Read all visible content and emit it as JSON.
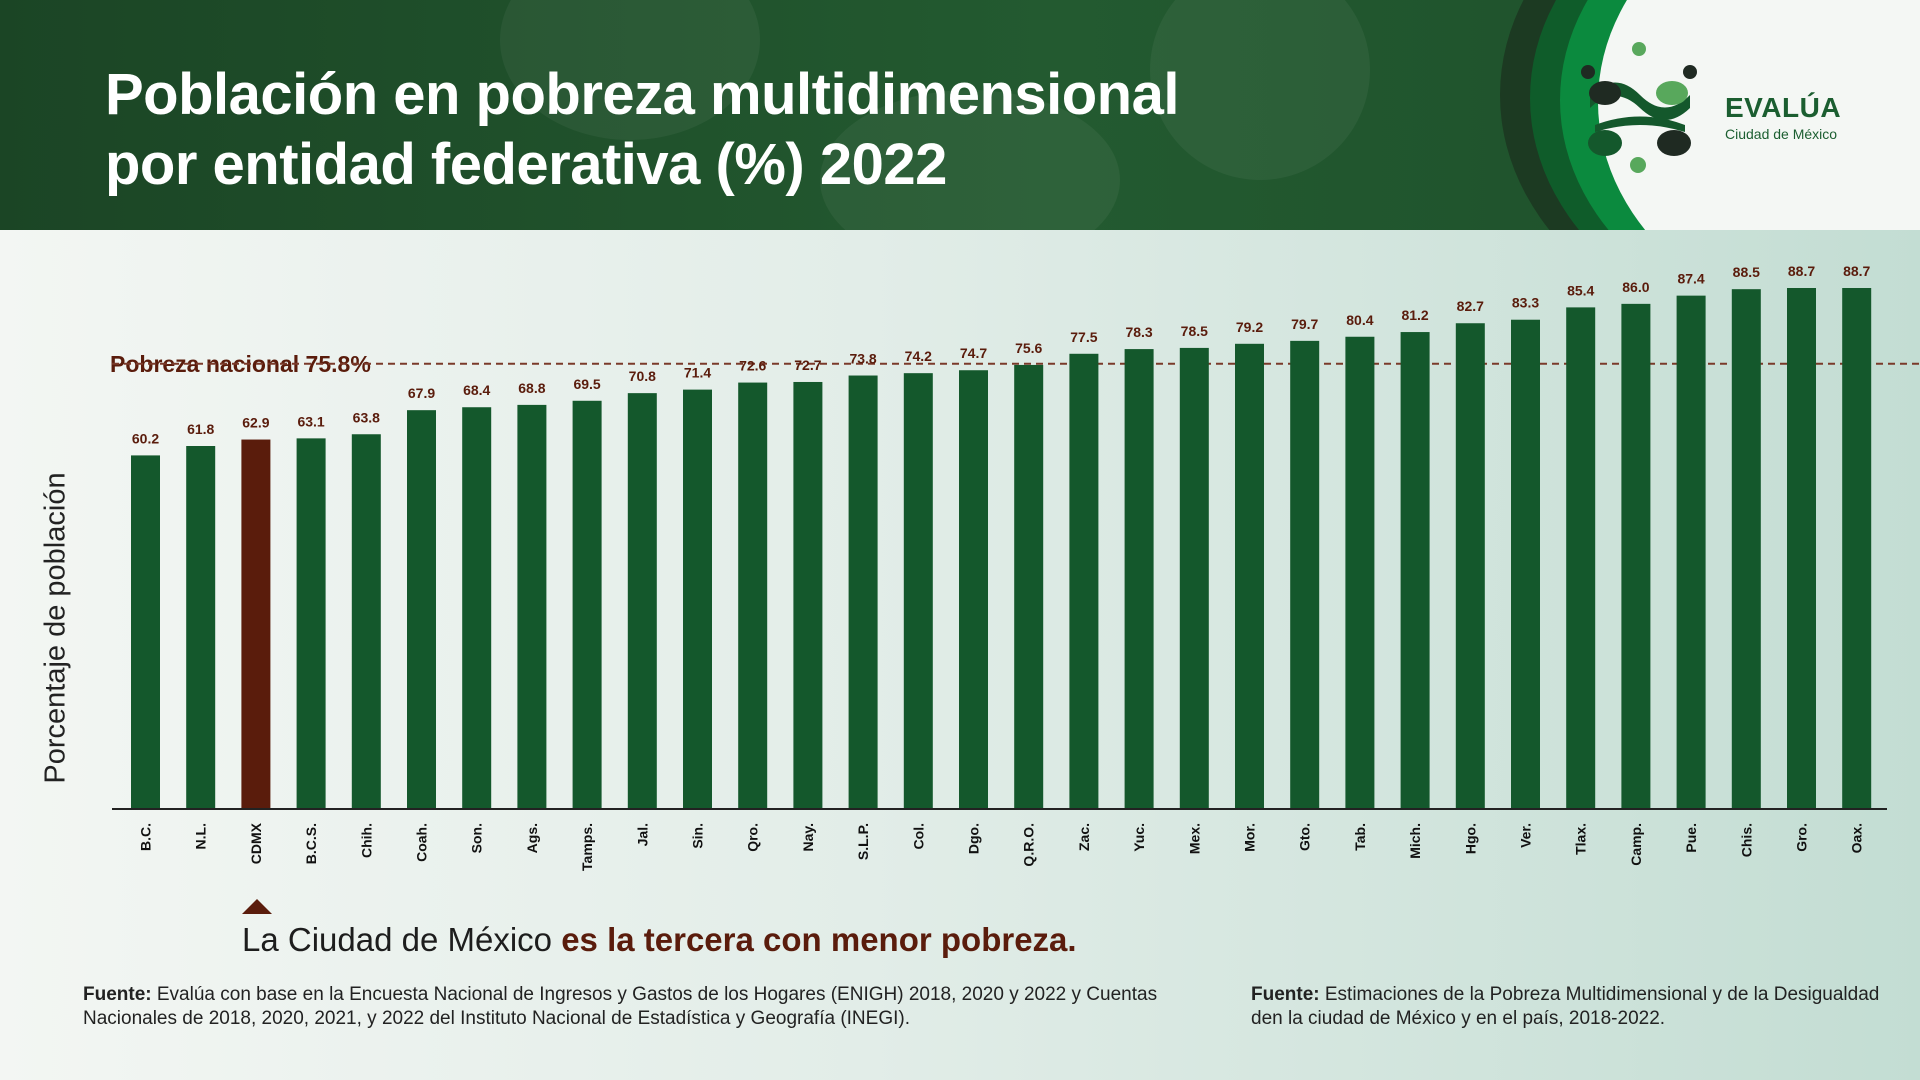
{
  "title": {
    "line1": "Población en pobreza multidimensional",
    "line2": "por entidad federativa (%) 2022"
  },
  "logo": {
    "name": "EVALÚA",
    "subtitle": "Ciudad de México"
  },
  "colors": {
    "bar": "#14582c",
    "highlight": "#5a1c0c",
    "value_label": "#5a1c0c",
    "reference_line": "#7a3a2a",
    "header": "#1b4525"
  },
  "chart_data": {
    "type": "bar",
    "title": "Población en pobreza multidimensional por entidad federativa (%) 2022",
    "ylabel": "Porcentaje de población",
    "xlabel": "",
    "ylim": [
      0,
      92
    ],
    "highlight": "CDMX",
    "categories": [
      "B.C.",
      "N.L.",
      "CDMX",
      "B.C.S.",
      "Chih.",
      "Coah.",
      "Son.",
      "Ags.",
      "Tamps.",
      "Jal.",
      "Sin.",
      "Qro.",
      "Nay.",
      "S.L.P.",
      "Col.",
      "Dgo.",
      "Q.R.O.",
      "Zac.",
      "Yuc.",
      "Mex.",
      "Mor.",
      "Gto.",
      "Tab.",
      "Mich.",
      "Hgo.",
      "Ver.",
      "Tlax.",
      "Camp.",
      "Pue.",
      "Chis.",
      "Gro.",
      "Oax."
    ],
    "values": [
      60.2,
      61.8,
      62.9,
      63.1,
      63.8,
      67.9,
      68.4,
      68.8,
      69.5,
      70.8,
      71.4,
      72.6,
      72.7,
      73.8,
      74.2,
      74.7,
      75.6,
      77.5,
      78.3,
      78.5,
      79.2,
      79.7,
      80.4,
      81.2,
      82.7,
      83.3,
      85.4,
      86.0,
      87.4,
      88.5,
      88.7,
      88.7
    ],
    "value_labels": [
      "60.2",
      "61.8",
      "62.9",
      "63.1",
      "63.8",
      "67.9",
      "68.4",
      "68.8",
      "69.5",
      "70.8",
      "71.4",
      "72.6",
      "72.7",
      "73.8",
      "74.2",
      "74.7",
      "75.6",
      "77.5",
      "78.3",
      "78.5",
      "79.2",
      "79.7",
      "80.4",
      "81.2",
      "82.7",
      "83.3",
      "85.4",
      "86.0",
      "87.4",
      "88.5",
      "88.7",
      "88.7"
    ],
    "reference_line": {
      "value": 75.8,
      "label": "Pobreza nacional 75.8%"
    }
  },
  "callout": {
    "text_regular": "La Ciudad de México ",
    "text_bold": "es la tercera con menor pobreza."
  },
  "sources": {
    "left_label": "Fuente:",
    "left_text": " Evalúa con base en la Encuesta Nacional de Ingresos y Gastos de los Hogares (ENIGH) 2018, 2020 y 2022 y Cuentas Nacionales de 2018, 2020, 2021, y 2022 del Instituto Nacional de Estadística y Geografía (INEGI).",
    "right_label": "Fuente:",
    "right_text": " Estimaciones de la Pobreza Multidimensional y de la Desigualdad den la ciudad de México y en el país, 2018-2022."
  }
}
